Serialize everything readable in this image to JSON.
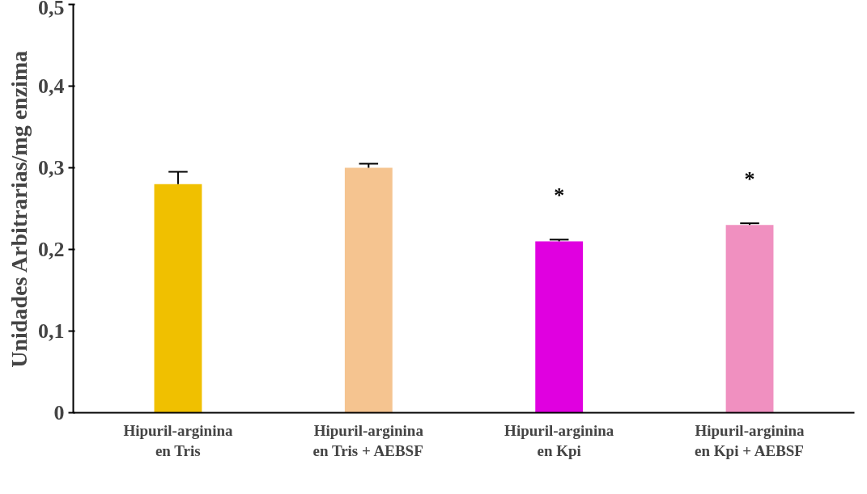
{
  "chart_data": {
    "type": "bar",
    "ylabel": "Unidades Arbitrarias/mg enzima",
    "categories": [
      "Hipuril-arginina\nen Tris",
      "Hipuril-arginina\nen Tris + AEBSF",
      "Hipuril-arginina\nen Kpi",
      "Hipuril-arginina\nen Kpi + AEBSF"
    ],
    "values": [
      0.28,
      0.3,
      0.21,
      0.23
    ],
    "errors": [
      [
        0.28,
        0.295
      ],
      [
        0.3,
        0.305
      ],
      [
        0.21,
        0.212
      ],
      [
        0.23,
        0.232
      ]
    ],
    "colors": [
      "#f0c000",
      "#f5c490",
      "#e000e0",
      "#f090c0"
    ],
    "ylim": [
      0,
      0.5
    ],
    "yticks": [
      {
        "value": 0,
        "label": "0"
      },
      {
        "value": 0.1,
        "label": "0,1"
      },
      {
        "value": 0.2,
        "label": "0,2"
      },
      {
        "value": 0.3,
        "label": "0,3"
      },
      {
        "value": 0.4,
        "label": "0,4"
      },
      {
        "value": 0.5,
        "label": "0,5"
      }
    ],
    "annotations": [
      "*",
      "*"
    ],
    "grid": false
  }
}
